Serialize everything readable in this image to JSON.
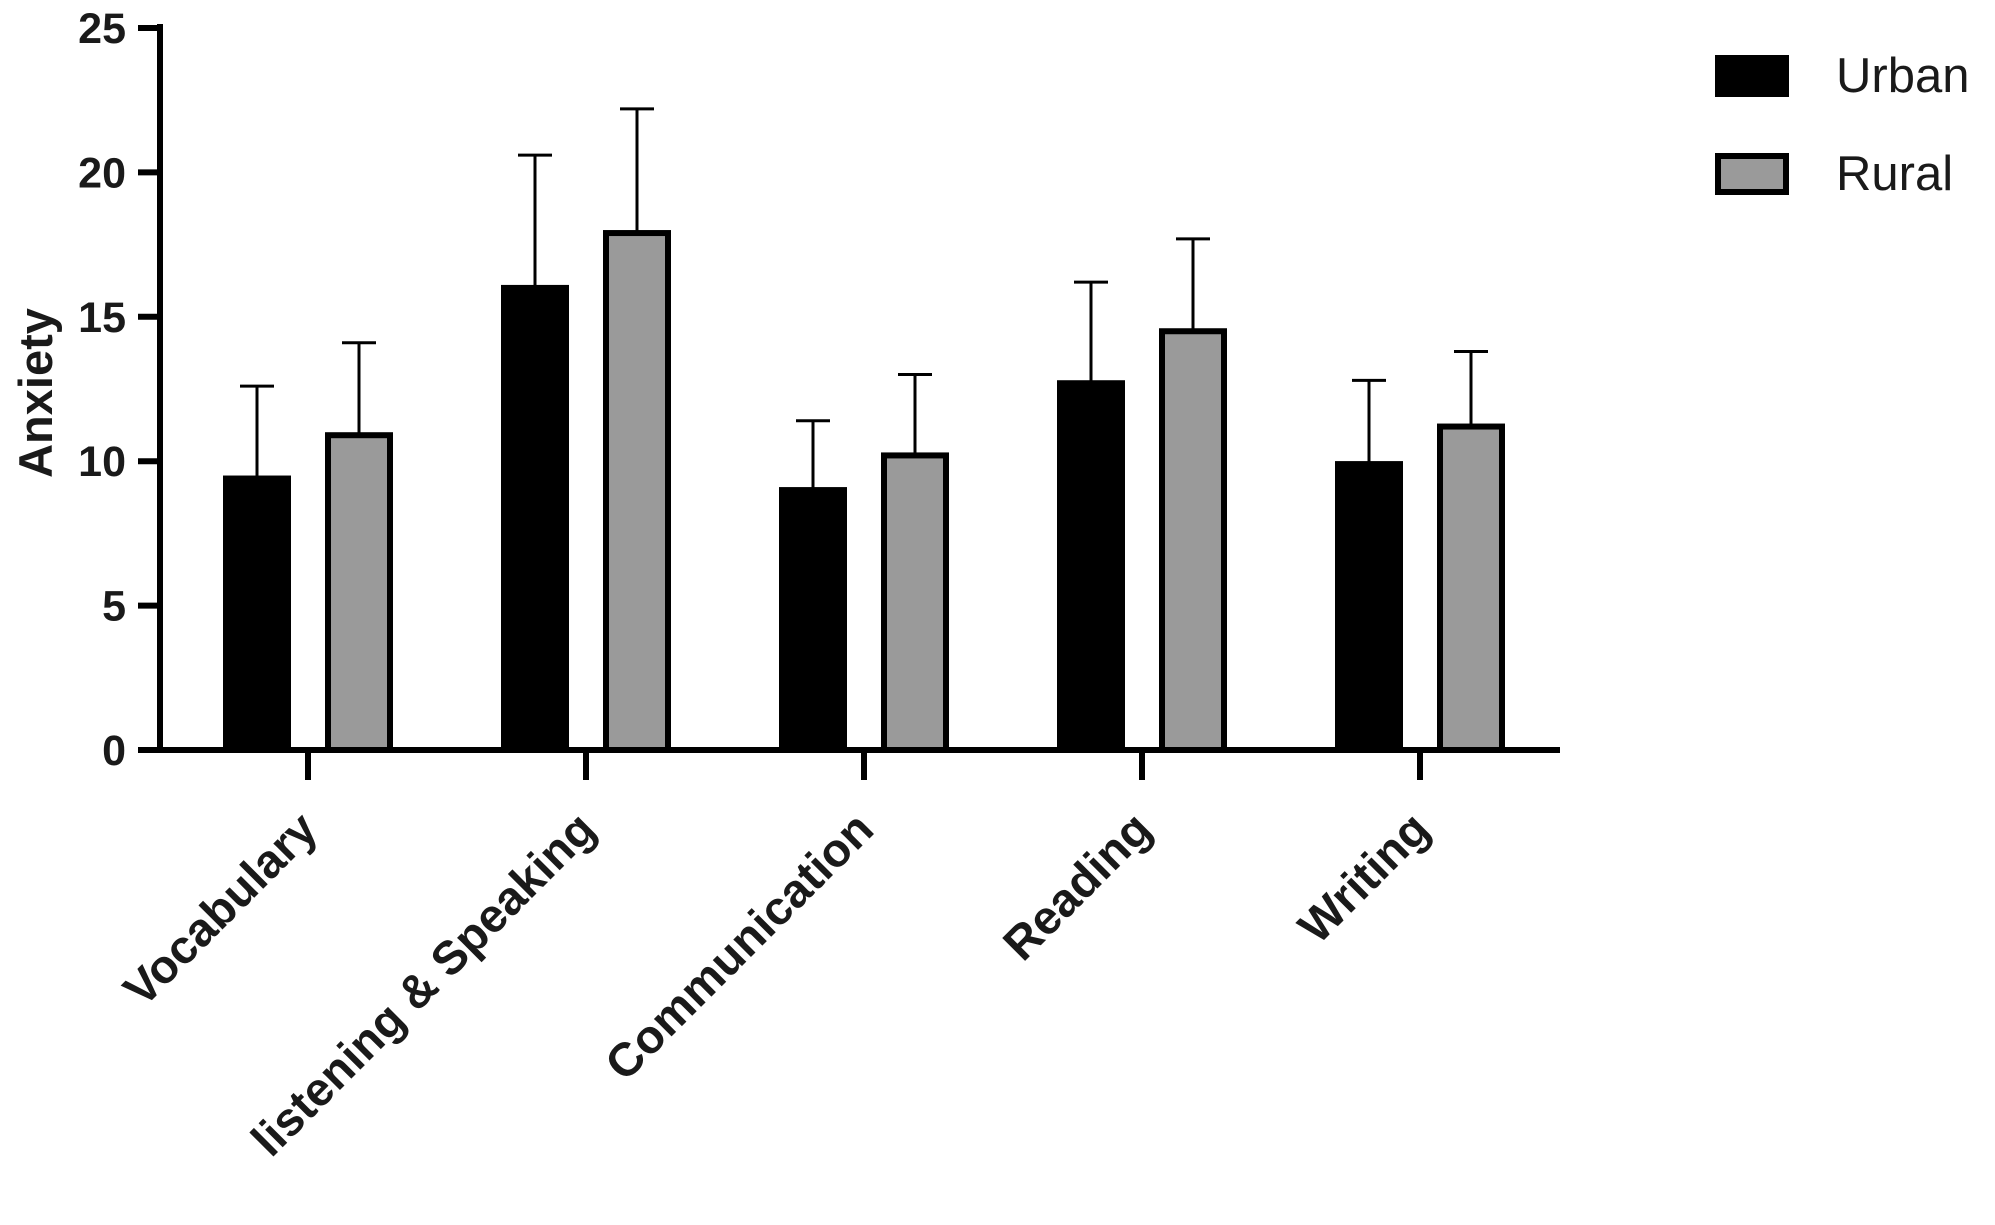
{
  "chart_data": {
    "type": "bar",
    "title": "",
    "xlabel": "",
    "ylabel": "Anxiety",
    "ylim": [
      0,
      25
    ],
    "yticks": [
      0,
      5,
      10,
      15,
      20,
      25
    ],
    "grid": false,
    "legend_position": "top-right",
    "categories": [
      "Vocabulary",
      "listening & Speaking",
      "Communication",
      "Reading",
      "Writing"
    ],
    "series": [
      {
        "name": "Urban",
        "color": "#000000",
        "values": [
          9.4,
          16.0,
          9.0,
          12.7,
          9.9
        ],
        "error": [
          3.2,
          4.6,
          2.4,
          3.5,
          2.9
        ]
      },
      {
        "name": "Rural",
        "color": "#9a9a9a",
        "values": [
          10.9,
          17.9,
          10.2,
          14.5,
          11.2
        ],
        "error": [
          3.2,
          4.3,
          2.8,
          3.2,
          2.6
        ]
      }
    ]
  }
}
